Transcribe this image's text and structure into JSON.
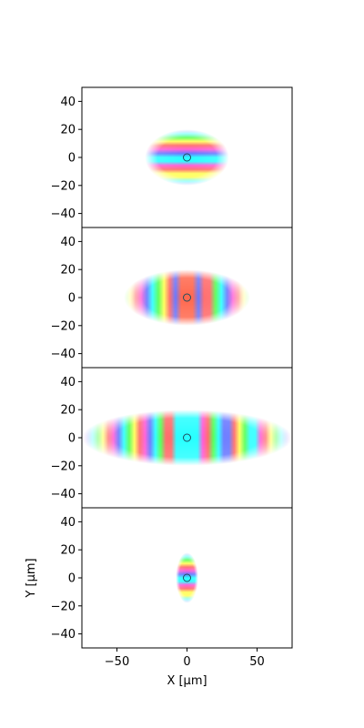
{
  "chart_data": [
    {
      "type": "heatmap",
      "panel": 1,
      "xlim": [
        -75,
        75
      ],
      "ylim": [
        -50,
        50
      ],
      "yticks": [
        -40,
        -20,
        0,
        20,
        40
      ],
      "ytick_labels": [
        "−40",
        "−20",
        "0",
        "20",
        "40"
      ],
      "marker": {
        "x": 0,
        "y": 0,
        "shape": "circle"
      },
      "pattern": {
        "extent_x": [
          -30,
          30
        ],
        "extent_y": [
          -20,
          20
        ],
        "fringes": "horizontal",
        "center_color": "cyan"
      }
    },
    {
      "type": "heatmap",
      "panel": 2,
      "xlim": [
        -75,
        75
      ],
      "ylim": [
        -50,
        50
      ],
      "yticks": [
        -40,
        -20,
        0,
        20,
        40
      ],
      "ytick_labels": [
        "−40",
        "−20",
        "0",
        "20",
        "40"
      ],
      "marker": {
        "x": 0,
        "y": 0,
        "shape": "circle"
      },
      "pattern": {
        "extent_x": [
          -45,
          45
        ],
        "extent_y": [
          -20,
          20
        ],
        "fringes": "vertical",
        "center_color": "red"
      }
    },
    {
      "type": "heatmap",
      "panel": 3,
      "xlim": [
        -75,
        75
      ],
      "ylim": [
        -50,
        50
      ],
      "yticks": [
        -40,
        -20,
        0,
        20,
        40
      ],
      "ytick_labels": [
        "−40",
        "−20",
        "0",
        "20",
        "40"
      ],
      "marker": {
        "x": 0,
        "y": 0,
        "shape": "circle"
      },
      "pattern": {
        "extent_x": [
          -75,
          75
        ],
        "extent_y": [
          -20,
          20
        ],
        "fringes": "vertical",
        "center_color": "cyan"
      }
    },
    {
      "type": "heatmap",
      "panel": 4,
      "xlim": [
        -75,
        75
      ],
      "ylim": [
        -50,
        50
      ],
      "yticks": [
        -40,
        -20,
        0,
        20,
        40
      ],
      "ytick_labels": [
        "−40",
        "−20",
        "0",
        "20",
        "40"
      ],
      "xticks": [
        -50,
        0,
        50
      ],
      "xtick_labels": [
        "−50",
        "0",
        "50"
      ],
      "xlabel": "X [μm]",
      "ylabel": "Y [μm]",
      "marker": {
        "x": 0,
        "y": 0,
        "shape": "circle"
      },
      "pattern": {
        "extent_x": [
          -8,
          8
        ],
        "extent_y": [
          -18,
          18
        ],
        "fringes": "horizontal",
        "center_color": "cyan"
      }
    }
  ],
  "colors": {
    "fringe_cycle": [
      "#00ffff",
      "#4a5cff",
      "#ff3ad0",
      "#ff4d4d",
      "#ffff33",
      "#33ff33"
    ],
    "center_cyan": "#00ffff",
    "center_red": "#ff4d2e",
    "marker_stroke": "#1f4e5f",
    "axes": "#000000"
  }
}
